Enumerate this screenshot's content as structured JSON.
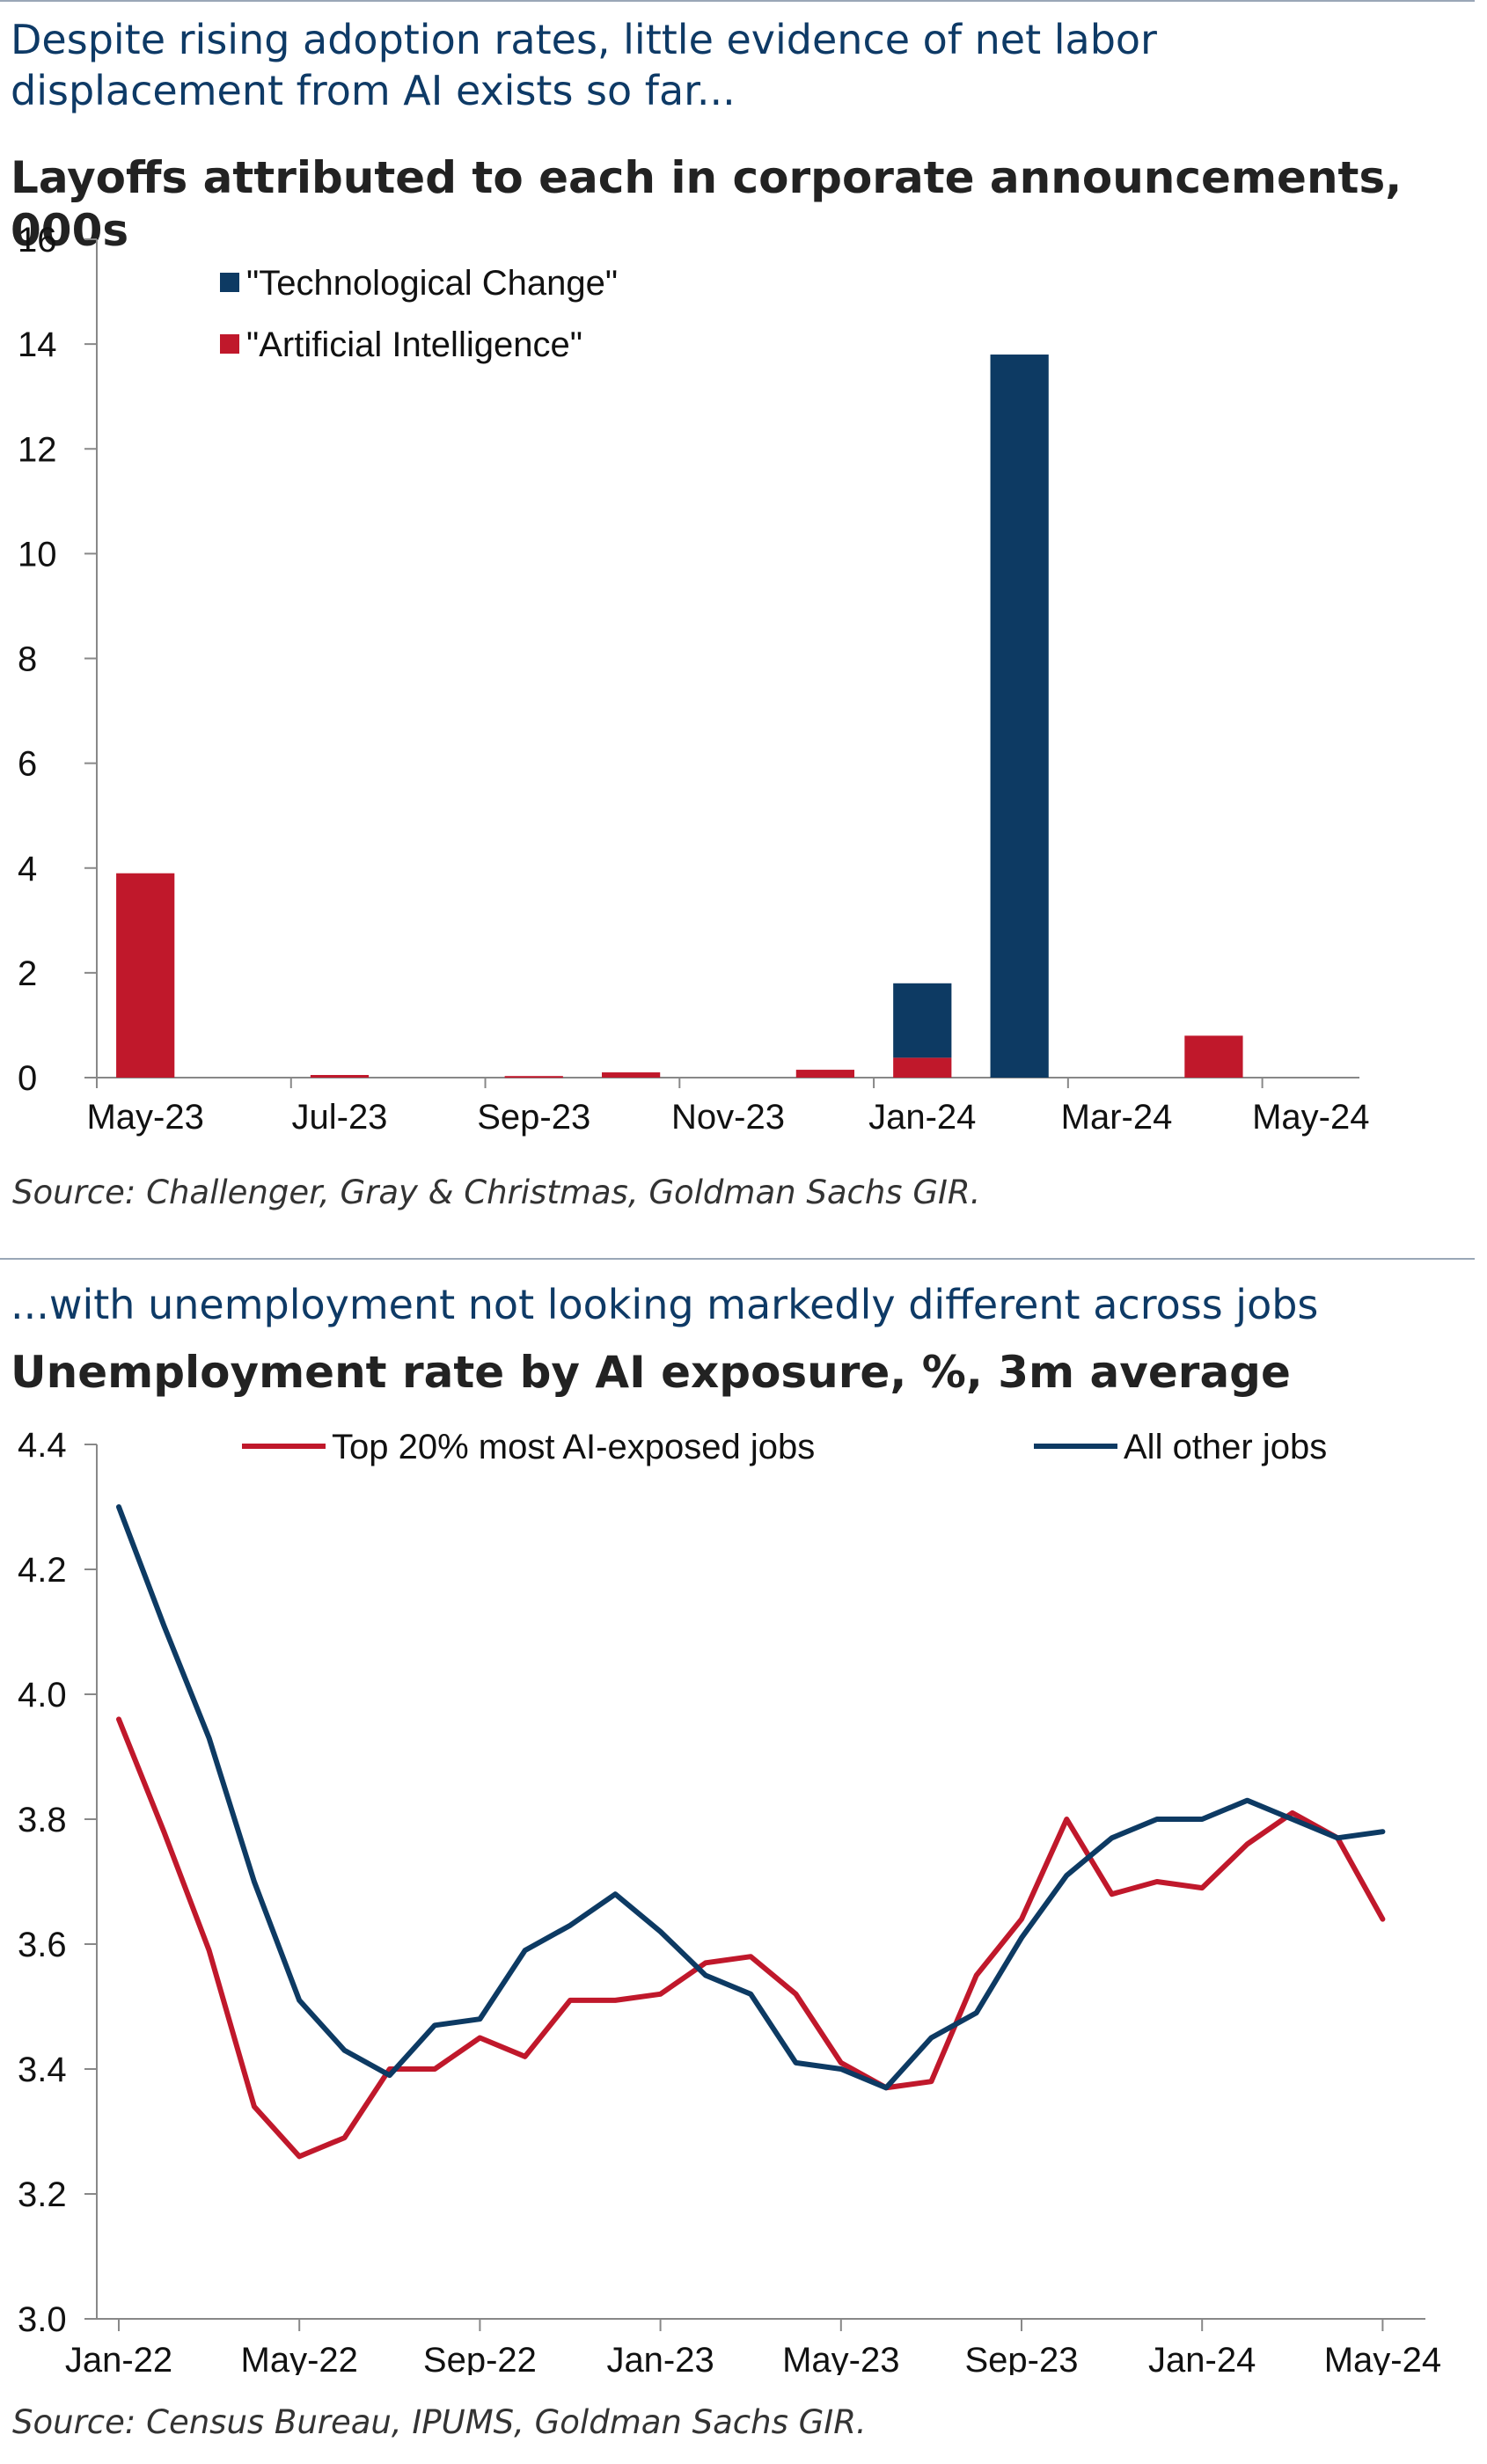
{
  "chart1": {
    "title": "Despite rising adoption rates, little evidence of net labor displacement from AI exists so far...",
    "subtitle": "Layoffs attributed to each in corporate announcements, 000s",
    "source": "Source: Challenger, Gray & Christmas, Goldman Sachs GIR."
  },
  "chart2": {
    "title": "...with unemployment not looking markedly different across jobs",
    "subtitle": "Unemployment rate by AI exposure, %, 3m average",
    "source": "Source: Census Bureau, IPUMS, Goldman Sachs GIR."
  },
  "chart_data": [
    {
      "type": "bar",
      "stacked": true,
      "title": "Despite rising adoption rates, little evidence of net labor displacement from AI exists so far...",
      "subtitle": "Layoffs attributed to each in corporate announcements, 000s",
      "categories": [
        "May-23",
        "Jun-23",
        "Jul-23",
        "Aug-23",
        "Sep-23",
        "Oct-23",
        "Nov-23",
        "Dec-23",
        "Jan-24",
        "Feb-24",
        "Mar-24",
        "Apr-24",
        "May-24"
      ],
      "xtick_labels": [
        "May-23",
        "Jul-23",
        "Sep-23",
        "Nov-23",
        "Jan-24",
        "Mar-24",
        "May-24"
      ],
      "series": [
        {
          "name": "\"Artificial Intelligence\"",
          "color": "#c0182b",
          "values": [
            3.9,
            0,
            0.05,
            0,
            0.03,
            0.1,
            0,
            0.15,
            0.38,
            0,
            0,
            0.8,
            0
          ]
        },
        {
          "name": "\"Technological Change\"",
          "color": "#0d3a63",
          "values": [
            0,
            0,
            0,
            0,
            0,
            0,
            0,
            0,
            1.42,
            13.8,
            0,
            0,
            0
          ]
        }
      ],
      "legend_order": [
        "\"Technological Change\"",
        "\"Artificial Intelligence\""
      ],
      "legend_position": "top-left",
      "ylim": [
        0,
        16
      ],
      "yticks": [
        0,
        2,
        4,
        6,
        8,
        10,
        12,
        14,
        16
      ],
      "xlabel": "",
      "ylabel": "",
      "grid": false
    },
    {
      "type": "line",
      "title": "...with unemployment not looking markedly different across jobs",
      "subtitle": "Unemployment rate by AI exposure, %, 3m average",
      "x": [
        "Jan-22",
        "Feb-22",
        "Mar-22",
        "Apr-22",
        "May-22",
        "Jun-22",
        "Jul-22",
        "Aug-22",
        "Sep-22",
        "Oct-22",
        "Nov-22",
        "Dec-22",
        "Jan-23",
        "Feb-23",
        "Mar-23",
        "Apr-23",
        "May-23",
        "Jun-23",
        "Jul-23",
        "Aug-23",
        "Sep-23",
        "Oct-23",
        "Nov-23",
        "Dec-23",
        "Jan-24",
        "Feb-24",
        "Mar-24",
        "Apr-24",
        "May-24"
      ],
      "xtick_labels": [
        "Jan-22",
        "May-22",
        "Sep-22",
        "Jan-23",
        "May-23",
        "Sep-23",
        "Jan-24",
        "May-24"
      ],
      "series": [
        {
          "name": "Top 20% most AI-exposed jobs",
          "color": "#c0182b",
          "values": [
            3.96,
            3.78,
            3.59,
            3.34,
            3.26,
            3.29,
            3.4,
            3.4,
            3.45,
            3.42,
            3.51,
            3.51,
            3.52,
            3.57,
            3.58,
            3.52,
            3.41,
            3.37,
            3.38,
            3.55,
            3.64,
            3.8,
            3.68,
            3.7,
            3.69,
            3.76,
            3.81,
            3.77,
            3.64
          ]
        },
        {
          "name": "All other jobs",
          "color": "#0d3a63",
          "values": [
            4.3,
            4.11,
            3.93,
            3.7,
            3.51,
            3.43,
            3.39,
            3.47,
            3.48,
            3.59,
            3.63,
            3.68,
            3.62,
            3.55,
            3.52,
            3.41,
            3.4,
            3.37,
            3.45,
            3.49,
            3.61,
            3.71,
            3.77,
            3.8,
            3.8,
            3.83,
            3.8,
            3.77,
            3.78
          ]
        }
      ],
      "legend_position": "top",
      "ylim": [
        3.0,
        4.4
      ],
      "yticks": [
        3.0,
        3.2,
        3.4,
        3.6,
        3.8,
        4.0,
        4.2,
        4.4
      ],
      "ytick_labels": [
        "3.0",
        "3.2",
        "3.4",
        "3.6",
        "3.8",
        "4.0",
        "4.2",
        "4.4"
      ],
      "xlabel": "",
      "ylabel": "",
      "grid": false
    }
  ]
}
